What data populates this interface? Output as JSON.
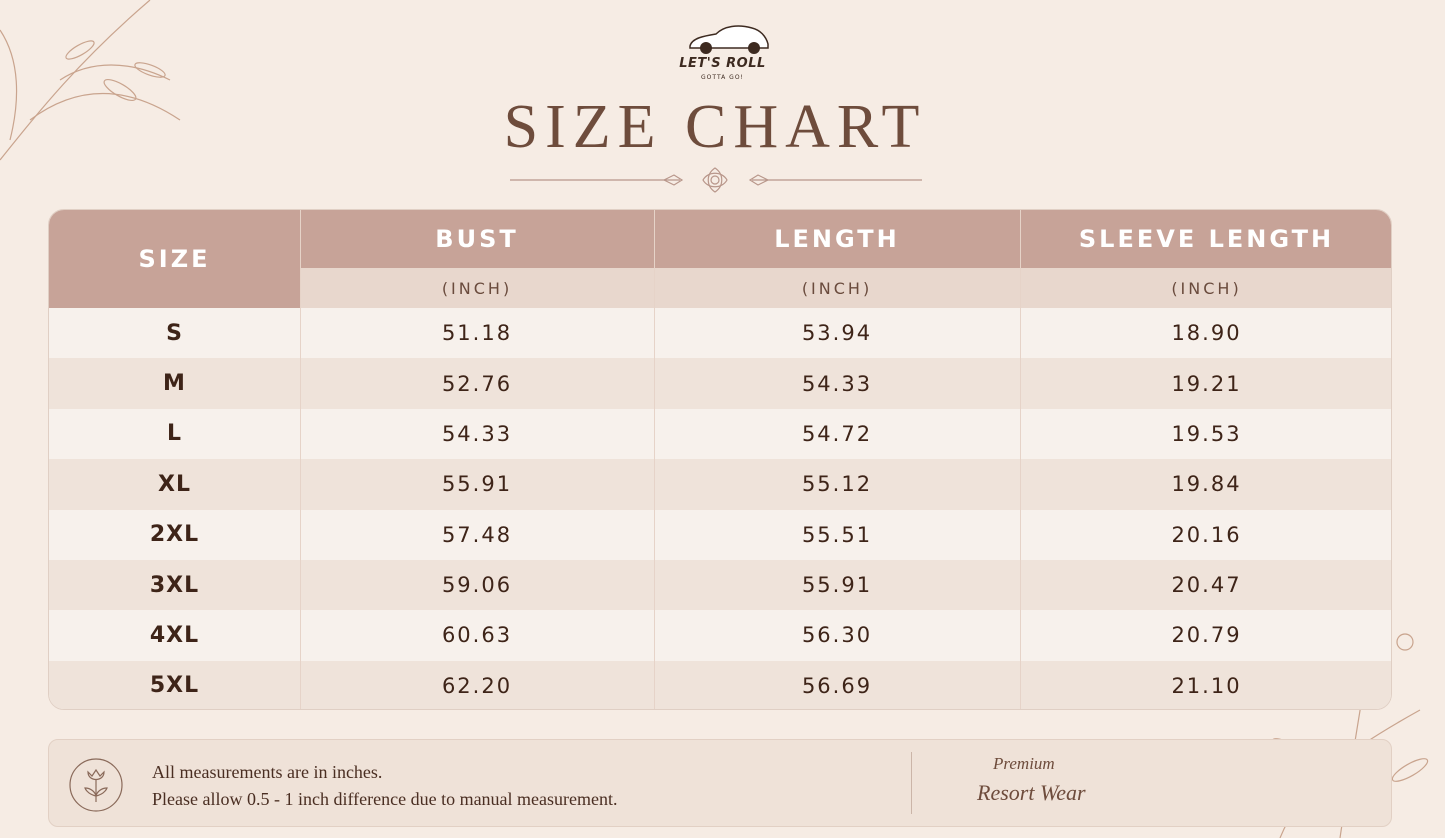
{
  "header": {
    "brand": "LET'S ROLL",
    "tagline": "GOTTA GO!",
    "title": "SIZE CHART"
  },
  "table": {
    "size_header": "SIZE",
    "columns": [
      {
        "name": "BUST",
        "unit": "(INCH)"
      },
      {
        "name": "LENGTH",
        "unit": "(INCH)"
      },
      {
        "name": "SLEEVE LENGTH",
        "unit": "(INCH)"
      }
    ],
    "rows": [
      [
        "S",
        "51.18",
        "53.94",
        "18.90"
      ],
      [
        "M",
        "52.76",
        "54.33",
        "19.21"
      ],
      [
        "L",
        "54.33",
        "54.72",
        "19.53"
      ],
      [
        "XL",
        "55.91",
        "55.12",
        "19.84"
      ],
      [
        "2XL",
        "57.48",
        "55.51",
        "20.16"
      ],
      [
        "3XL",
        "59.06",
        "55.91",
        "20.47"
      ],
      [
        "4XL",
        "60.63",
        "56.30",
        "20.79"
      ],
      [
        "5XL",
        "62.20",
        "56.69",
        "21.10"
      ]
    ]
  },
  "footer": {
    "notes": [
      "All measurements are in inches.",
      "Please allow 0.5 - 1 inch difference due to manual measurement."
    ],
    "badge": [
      "Premium",
      "Resort Wear"
    ]
  }
}
